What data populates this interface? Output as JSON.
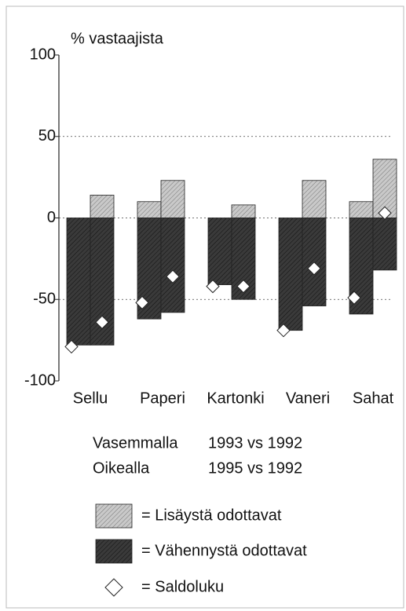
{
  "chart_data": {
    "type": "bar",
    "y_label": "% vastaajista",
    "categories": [
      "Sellu",
      "Paperi",
      "Kartonki",
      "Vaneri",
      "Sahat"
    ],
    "series": [
      {
        "name": "= Lisäystä odottavat",
        "color": "#c9c9c9",
        "left": [
          0,
          10,
          0,
          0,
          10
        ],
        "right": [
          14,
          23,
          8,
          23,
          36
        ]
      },
      {
        "name": "= Vähennystä odottavat",
        "color": "#3a3a3a",
        "left": [
          -78,
          -62,
          -41,
          -69,
          -59
        ],
        "right": [
          -78,
          -58,
          -50,
          -54,
          -32
        ]
      },
      {
        "name": "= Saldoluku",
        "color": "#ffffff",
        "left": [
          -79,
          -52,
          -42,
          -69,
          -49
        ],
        "right": [
          -64,
          -36,
          -42,
          -31,
          3
        ]
      }
    ],
    "notes": [
      [
        "Vasemmalla",
        "1993 vs 1992"
      ],
      [
        "Oikealla",
        "1995 vs 1992"
      ]
    ],
    "ylim": [
      -100,
      100
    ],
    "yticks": [
      -100,
      -50,
      0,
      50,
      100
    ],
    "grid": true
  }
}
